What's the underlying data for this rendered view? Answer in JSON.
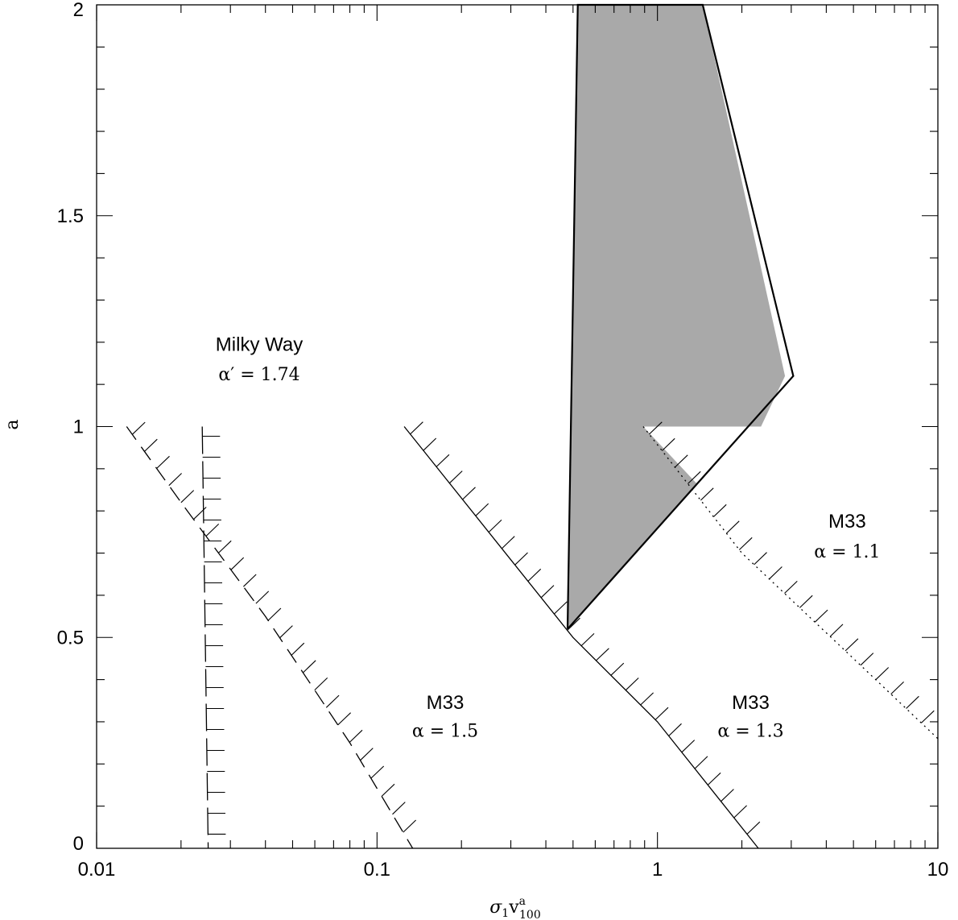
{
  "chart_data": {
    "type": "line",
    "title": "",
    "xlabel": {
      "base": "σ",
      "sub1": "1",
      "mid": "v",
      "sup": "a",
      "sub2": "100"
    },
    "ylabel": "a",
    "xscale": "log",
    "xlim": [
      0.01,
      10
    ],
    "ylim": [
      0,
      2
    ],
    "x_ticks": [
      0.01,
      0.1,
      1,
      10
    ],
    "x_tick_labels": [
      "0.01",
      "0.1",
      "1",
      "10"
    ],
    "y_ticks": [
      0,
      0.5,
      1,
      1.5,
      2
    ],
    "y_tick_labels": [
      "0",
      "0.5",
      "1",
      "1.5",
      "2"
    ],
    "grid": false,
    "series": [
      {
        "key": "mw",
        "style": "long-dash",
        "hatch": "right",
        "x": [
          0.0238,
          0.0242,
          0.0246,
          0.025
        ],
        "y": [
          1.0,
          0.67,
          0.33,
          0.0
        ]
      },
      {
        "key": "m33_15",
        "style": "dash",
        "hatch": "up-right",
        "x": [
          0.0128,
          0.02,
          0.04,
          0.08,
          0.134
        ],
        "y": [
          1.0,
          0.82,
          0.55,
          0.25,
          0.0
        ]
      },
      {
        "key": "m33_13",
        "style": "solid",
        "hatch": "up-right",
        "x": [
          0.125,
          0.5,
          1.0,
          2.29
        ],
        "y": [
          1.0,
          0.5,
          0.3,
          0.0
        ]
      },
      {
        "key": "m33_11",
        "style": "dotted",
        "hatch": "up-right",
        "x": [
          0.89,
          2.0,
          5.0,
          10.0
        ],
        "y": [
          1.0,
          0.7,
          0.45,
          0.26
        ]
      }
    ],
    "shaded_region": {
      "fill": "#a9a9a9",
      "outline": [
        {
          "x": 0.478,
          "y": 0.52
        },
        {
          "x": 0.52,
          "y": 2.0
        },
        {
          "x": 1.45,
          "y": 2.0
        },
        {
          "x": 3.05,
          "y": 1.12
        },
        {
          "x": 0.478,
          "y": 0.52
        }
      ],
      "fill_polygon": [
        {
          "x": 0.478,
          "y": 0.52
        },
        {
          "x": 0.52,
          "y": 2.0
        },
        {
          "x": 1.45,
          "y": 2.0
        },
        {
          "x": 2.85,
          "y": 1.12
        },
        {
          "x": 2.34,
          "y": 1.0
        },
        {
          "x": 0.89,
          "y": 1.0
        },
        {
          "x": 1.38,
          "y": 0.865
        },
        {
          "x": 0.478,
          "y": 0.52
        }
      ]
    },
    "annotations": [
      {
        "key": "mw_name",
        "text": "Milky Way",
        "x": 0.038,
        "y": 1.18,
        "font": "sans"
      },
      {
        "key": "mw_alpha",
        "text": "α′ = 1.74",
        "x": 0.038,
        "y": 1.11,
        "font": "serif"
      },
      {
        "key": "m33_15_name",
        "text": "M33",
        "x": 0.175,
        "y": 0.33,
        "font": "sans"
      },
      {
        "key": "m33_15_alpha",
        "text": "α = 1.5",
        "x": 0.175,
        "y": 0.265,
        "font": "serif"
      },
      {
        "key": "m33_13_name",
        "text": "M33",
        "x": 2.15,
        "y": 0.33,
        "font": "sans"
      },
      {
        "key": "m33_13_alpha",
        "text": "α = 1.3",
        "x": 2.15,
        "y": 0.265,
        "font": "serif"
      },
      {
        "key": "m33_11_name",
        "text": "M33",
        "x": 4.75,
        "y": 0.76,
        "font": "sans"
      },
      {
        "key": "m33_11_alpha",
        "text": "α = 1.1",
        "x": 4.75,
        "y": 0.69,
        "font": "serif"
      }
    ]
  }
}
